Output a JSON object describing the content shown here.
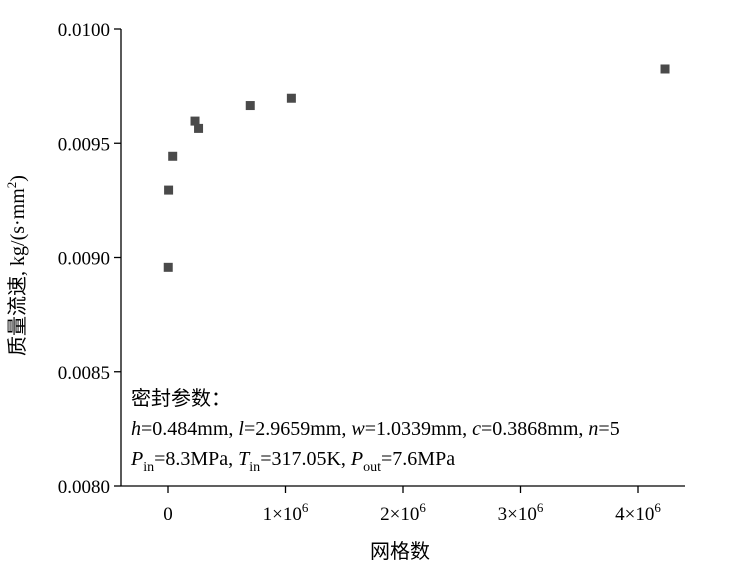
{
  "chart_data": {
    "type": "scatter",
    "xlabel": "网格数",
    "ylabel": "质量流速, kg/(s·mm",
    "ylabel_sup": "2",
    "ylabel_close": ")",
    "xlim": [
      -400000,
      4400000
    ],
    "ylim": [
      0.008,
      0.01
    ],
    "x_tick_values": [
      0,
      1000000,
      2000000,
      3000000,
      4000000
    ],
    "x_tick_labels": [
      {
        "base": "0",
        "sup": ""
      },
      {
        "base": "1×10",
        "sup": "6"
      },
      {
        "base": "2×10",
        "sup": "6"
      },
      {
        "base": "3×10",
        "sup": "6"
      },
      {
        "base": "4×10",
        "sup": "6"
      }
    ],
    "y_tick_values": [
      0.008,
      0.0085,
      0.009,
      0.0095,
      0.01
    ],
    "y_tick_labels": [
      "0.0080",
      "0.0085",
      "0.0090",
      "0.0095",
      "0.0100"
    ],
    "points": [
      {
        "x": 2000,
        "y": 0.008957
      },
      {
        "x": 5000,
        "y": 0.009295
      },
      {
        "x": 40000,
        "y": 0.009443
      },
      {
        "x": 230000,
        "y": 0.009597
      },
      {
        "x": 260000,
        "y": 0.009565
      },
      {
        "x": 700000,
        "y": 0.009665
      },
      {
        "x": 1050000,
        "y": 0.009697
      },
      {
        "x": 4230000,
        "y": 0.009825
      }
    ],
    "marker": {
      "shape": "square",
      "color": "#4a4a4a"
    },
    "grid": false,
    "annotation": {
      "heading": "密封参数：",
      "line2": [
        {
          "t": "h",
          "i": true
        },
        {
          "t": "=0.484mm, "
        },
        {
          "t": "l",
          "i": true
        },
        {
          "t": "=2.9659mm, "
        },
        {
          "t": "w",
          "i": true
        },
        {
          "t": "=1.0339mm, "
        },
        {
          "t": "c",
          "i": true
        },
        {
          "t": "=0.3868mm, "
        },
        {
          "t": "n",
          "i": true
        },
        {
          "t": "=5"
        }
      ],
      "line3": [
        {
          "t": "P",
          "i": true
        },
        {
          "t": "in",
          "sub": true
        },
        {
          "t": "=8.3MPa, "
        },
        {
          "t": "T",
          "i": true
        },
        {
          "t": "in",
          "sub": true
        },
        {
          "t": "=317.05K, "
        },
        {
          "t": "P",
          "i": true
        },
        {
          "t": "out",
          "sub": true
        },
        {
          "t": "=7.6MPa"
        }
      ]
    }
  }
}
